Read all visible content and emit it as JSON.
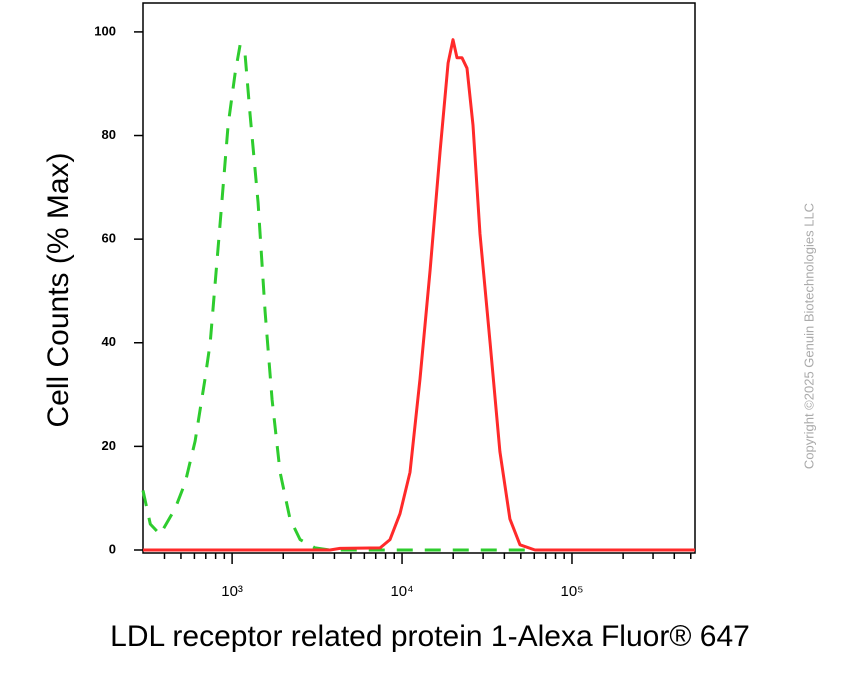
{
  "chart_data": {
    "type": "line",
    "x_label": "LDL receptor related protein 1-Alexa Fluor® 647",
    "y_label": "Cell Counts (% Max)",
    "annotation": "Copyright ©2025 Genuin Biotechnologies LLC",
    "x_log": true,
    "xlim": [
      299,
      529600
    ],
    "ylim": [
      0,
      105
    ],
    "xticks": [
      {
        "value": 1000,
        "label": "10³"
      },
      {
        "value": 10000,
        "label": "10⁴"
      },
      {
        "value": 100000,
        "label": "10⁵"
      }
    ],
    "xminorticks": [
      400,
      500,
      600,
      700,
      800,
      900,
      2000,
      3000,
      4000,
      5000,
      6000,
      7000,
      8000,
      9000,
      20000,
      30000,
      40000,
      50000,
      60000,
      70000,
      80000,
      90000,
      200000,
      300000,
      400000,
      500000
    ],
    "yticks": [
      0,
      20,
      40,
      60,
      80,
      100
    ],
    "series": [
      {
        "color": "#2ecc2e",
        "dashed": true,
        "x": [
          299,
          330,
          377,
          462,
          530,
          606,
          693,
          743,
          850,
          947,
          1042,
          1114,
          1192,
          1276,
          1422,
          1564,
          1719,
          1915,
          2192,
          2512,
          3077,
          3767,
          37670,
          529600
        ],
        "values": [
          11.5,
          5,
          3,
          8,
          13,
          21,
          33,
          40,
          63,
          82,
          92,
          97.5,
          95.6,
          84,
          67,
          46,
          29,
          15,
          6,
          2,
          0.4,
          0,
          0,
          0
        ]
      },
      {
        "color": "#ff2a2a",
        "dashed": false,
        "x": [
          299,
          3767,
          4315,
          7430,
          8497,
          9730,
          11140,
          12760,
          14620,
          16740,
          18670,
          19950,
          21070,
          22540,
          24110,
          26160,
          28760,
          32960,
          37670,
          43150,
          49420,
          60560,
          529600
        ],
        "values": [
          0,
          0,
          0.3,
          0.4,
          2,
          7,
          15,
          33,
          54,
          77,
          94,
          98.5,
          95,
          95,
          93,
          82,
          61,
          40,
          19,
          6,
          1,
          0,
          0
        ]
      }
    ]
  }
}
